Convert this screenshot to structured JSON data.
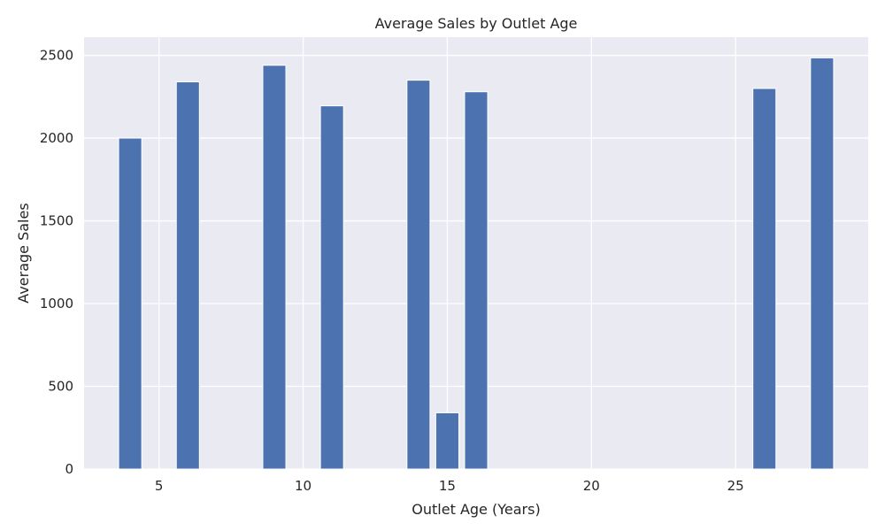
{
  "chart_data": {
    "type": "bar",
    "title": "Average Sales by Outlet Age",
    "xlabel": "Outlet Age (Years)",
    "ylabel": "Average Sales",
    "x": [
      4,
      6,
      9,
      11,
      14,
      15,
      16,
      26,
      28
    ],
    "values": [
      2000,
      2340,
      2440,
      2195,
      2350,
      340,
      2280,
      2300,
      2485
    ],
    "xlim": [
      2.4,
      29.6
    ],
    "ylim": [
      0,
      2610
    ],
    "xticks": [
      5,
      10,
      15,
      20,
      25
    ],
    "yticks": [
      0,
      500,
      1000,
      1500,
      2000,
      2500
    ],
    "grid": true,
    "bar_color": "#4c72b0",
    "plot_background": "#eaeaf2",
    "grid_color": "#ffffff"
  }
}
